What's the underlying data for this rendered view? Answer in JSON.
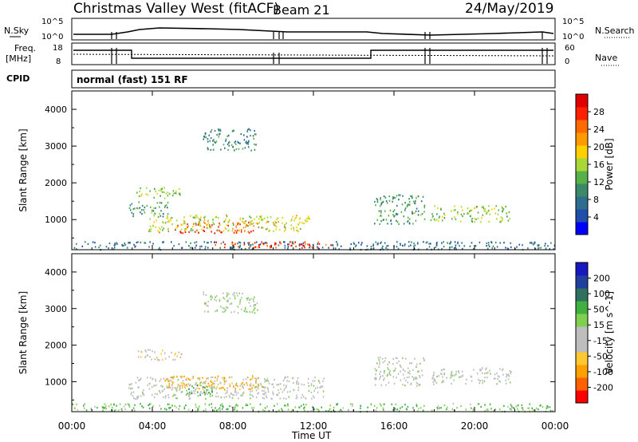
{
  "header": {
    "site": "Christmas Valley West (fitACF)",
    "beam": "Beam 21",
    "date": "24/May/2019"
  },
  "panels": {
    "nsky_label": "N.Sky",
    "nsearch_label": "N.Search",
    "freq_label_1": "Freq.",
    "freq_label_2": "[MHz]",
    "nave_label": "Nave",
    "cpid_label": "CPID",
    "cpid_text": "normal (fast) 151 RF",
    "nsky_ticks": [
      "10^5",
      "10^0"
    ],
    "nsearch_ticks": [
      "10^5",
      "10^0"
    ],
    "freq_ticks": [
      "18",
      "8"
    ],
    "nave_ticks": [
      "60",
      "0"
    ]
  },
  "colors": {
    "power": [
      "#0000ff",
      "#1f4fa8",
      "#2f6e8e",
      "#3a8a6a",
      "#58b048",
      "#a8d838",
      "#ffd000",
      "#ff9a00",
      "#ff6a00",
      "#ff2000",
      "#e00000"
    ],
    "velocity": [
      "#ff0000",
      "#ff6000",
      "#ffa000",
      "#ffc830",
      "#bebebe",
      "#bebebe",
      "#7fd050",
      "#40b040",
      "#307060",
      "#2040a0",
      "#1818c0"
    ]
  },
  "chart_data": [
    {
      "type": "heatmap",
      "title": "Power",
      "xlabel": "Time UT",
      "ylabel": "Slant Range [km]",
      "colorbar_label": "Power [dB]",
      "colorbar_ticks": [
        "4",
        "8",
        "12",
        "16",
        "20",
        "24",
        "28"
      ],
      "xlim": [
        0,
        24
      ],
      "ylim": [
        180,
        4500
      ],
      "x_ticks": [
        "00:00",
        "04:00",
        "08:00",
        "12:00",
        "16:00",
        "20:00",
        "00:00"
      ],
      "y_ticks": [
        1000,
        2000,
        3000,
        4000
      ],
      "patches": [
        {
          "t": [
            4.3,
            9.0
          ],
          "r": [
            640,
            760
          ],
          "dB": 27
        },
        {
          "t": [
            5.2,
            9.5
          ],
          "r": [
            800,
            980
          ],
          "dB": 24
        },
        {
          "t": [
            3.8,
            11.8
          ],
          "r": [
            700,
            1150
          ],
          "dB": 16
        },
        {
          "t": [
            2.8,
            4.8
          ],
          "r": [
            1100,
            1500
          ],
          "dB": 10
        },
        {
          "t": [
            3.2,
            5.5
          ],
          "r": [
            1600,
            1900
          ],
          "dB": 14
        },
        {
          "t": [
            6.5,
            9.2
          ],
          "r": [
            2900,
            3500
          ],
          "dB": 8
        },
        {
          "t": [
            15.0,
            17.5
          ],
          "r": [
            900,
            1700
          ],
          "dB": 10
        },
        {
          "t": [
            17.8,
            21.8
          ],
          "r": [
            950,
            1400
          ],
          "dB": 14
        },
        {
          "t": [
            0.0,
            24.0
          ],
          "r": [
            200,
            420
          ],
          "dB": 6
        },
        {
          "t": [
            7.0,
            13.0
          ],
          "r": [
            250,
            420
          ],
          "dB": 26
        }
      ]
    },
    {
      "type": "heatmap",
      "title": "Velocity",
      "xlabel": "Time UT",
      "ylabel": "Slant Range [km]",
      "colorbar_label": "Velocity [m s^-1]",
      "colorbar_ticks": [
        "-200",
        "-100",
        "-50",
        "-15",
        "15",
        "50",
        "100",
        "200"
      ],
      "xlim": [
        0,
        24
      ],
      "ylim": [
        180,
        4500
      ],
      "x_ticks": [
        "00:00",
        "04:00",
        "08:00",
        "12:00",
        "16:00",
        "20:00",
        "00:00"
      ],
      "y_ticks": [
        1000,
        2000,
        3000,
        4000
      ],
      "patches": [
        {
          "t": [
            4.6,
            9.5
          ],
          "r": [
            800,
            1180
          ],
          "v": -60
        },
        {
          "t": [
            5.5,
            7.0
          ],
          "r": [
            650,
            950
          ],
          "v": 40
        },
        {
          "t": [
            2.8,
            12.5
          ],
          "r": [
            550,
            1150
          ],
          "v": 0
        },
        {
          "t": [
            3.2,
            5.5
          ],
          "r": [
            1600,
            1900
          ],
          "v": -20
        },
        {
          "t": [
            6.5,
            9.2
          ],
          "r": [
            2900,
            3500
          ],
          "v": 10
        },
        {
          "t": [
            15.0,
            17.5
          ],
          "r": [
            900,
            1700
          ],
          "v": 0
        },
        {
          "t": [
            17.8,
            21.8
          ],
          "r": [
            950,
            1400
          ],
          "v": 0
        },
        {
          "t": [
            0.0,
            24.0
          ],
          "r": [
            200,
            420
          ],
          "v": 30
        }
      ]
    }
  ]
}
